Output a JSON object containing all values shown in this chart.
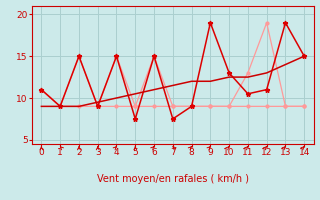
{
  "background_color": "#cceaea",
  "grid_color": "#aacfcf",
  "xlabel": "Vent moyen/en rafales ( km/h )",
  "xlim": [
    -0.5,
    14.5
  ],
  "ylim": [
    4.5,
    21
  ],
  "yticks": [
    5,
    10,
    15,
    20
  ],
  "xticks": [
    0,
    1,
    2,
    3,
    4,
    5,
    6,
    7,
    8,
    9,
    10,
    11,
    12,
    13,
    14
  ],
  "line_avg_x": [
    0,
    1,
    2,
    3,
    4,
    5,
    6,
    7,
    8,
    9,
    10,
    11,
    12,
    13,
    14
  ],
  "line_avg_y": [
    11,
    9,
    9,
    9,
    9,
    9,
    9,
    9,
    9,
    9,
    9,
    9,
    9,
    9,
    9
  ],
  "line_avg_color": "#ff9999",
  "line_gust_light_x": [
    0,
    1,
    2,
    3,
    4,
    5,
    6,
    7,
    8,
    9,
    10,
    11,
    12,
    13,
    14
  ],
  "line_gust_light_y": [
    11,
    9,
    15,
    9,
    15,
    9,
    15,
    9,
    9,
    9,
    9,
    13,
    19,
    9,
    9
  ],
  "line_gust_light_color": "#ff9999",
  "line_main_x": [
    0,
    1,
    2,
    3,
    4,
    5,
    6,
    7,
    8,
    9,
    10,
    11,
    12,
    13,
    14
  ],
  "line_main_y": [
    11,
    9,
    15,
    9,
    15,
    7.5,
    15,
    7.5,
    9,
    19,
    13,
    10.5,
    11,
    19,
    15
  ],
  "line_main_color": "#dd0000",
  "line_trend_x": [
    0,
    1,
    2,
    3,
    4,
    5,
    6,
    7,
    8,
    9,
    10,
    11,
    12,
    13,
    14
  ],
  "line_trend_y": [
    9,
    9,
    9,
    9.5,
    10,
    10.5,
    11,
    11.5,
    12,
    12,
    12.5,
    12.5,
    13,
    14,
    15
  ],
  "line_trend_color": "#cc0000",
  "arrow_color": "#cc0000",
  "xlabel_color": "#cc0000",
  "tick_color": "#cc0000",
  "spine_color": "#cc0000",
  "font_size": 6.5,
  "arrow_angles_deg": [
    90,
    135,
    90,
    90,
    45,
    90,
    45,
    135,
    45,
    45,
    45,
    45,
    45,
    45,
    45
  ]
}
